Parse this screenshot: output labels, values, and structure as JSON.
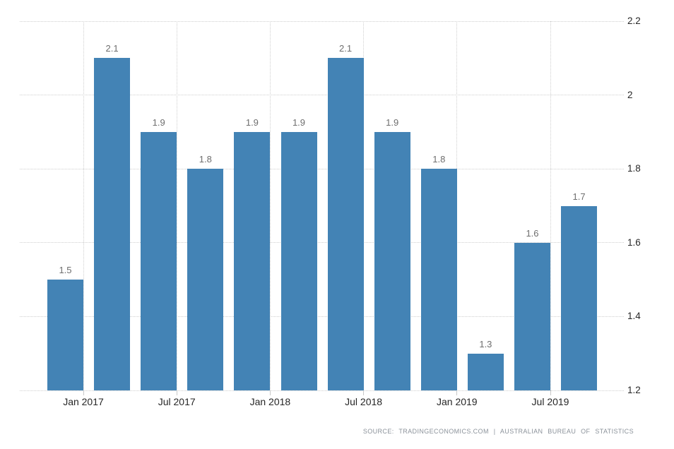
{
  "chart_data": {
    "type": "bar",
    "title": "",
    "xlabel": "",
    "ylabel": "",
    "values": [
      1.5,
      2.1,
      1.9,
      1.8,
      1.9,
      1.9,
      2.1,
      1.9,
      1.8,
      1.3,
      1.6,
      1.7
    ],
    "data_labels": [
      "1.5",
      "2.1",
      "1.9",
      "1.8",
      "1.9",
      "1.9",
      "2.1",
      "1.9",
      "1.8",
      "1.3",
      "1.6",
      "1.7"
    ],
    "x_tick_labels": [
      "Jan 2017",
      "Jul 2017",
      "Jan 2018",
      "Jul 2018",
      "Jan 2019",
      "Jul 2019"
    ],
    "y_ticks": [
      1.2,
      1.4,
      1.6,
      1.8,
      2,
      2.2
    ],
    "y_tick_labels": [
      "1.2",
      "1.4",
      "1.6",
      "1.8",
      "2",
      "2.2"
    ],
    "ylim": [
      1.2,
      2.2
    ],
    "grid": true,
    "grid_style": "dotted",
    "y_axis_position": "right",
    "legend_position": "none"
  },
  "colors": {
    "bar": "#4383b5",
    "grid": "#cfcfcf",
    "tick": "#c8c8c8",
    "data_label": "#6e6e6e",
    "axis_label": "#262626",
    "source_text": "#8b929a",
    "background": "#ffffff"
  },
  "source": {
    "text": "SOURCE: TRADINGECONOMICS.COM | AUSTRALIAN BUREAU OF STATISTICS"
  }
}
